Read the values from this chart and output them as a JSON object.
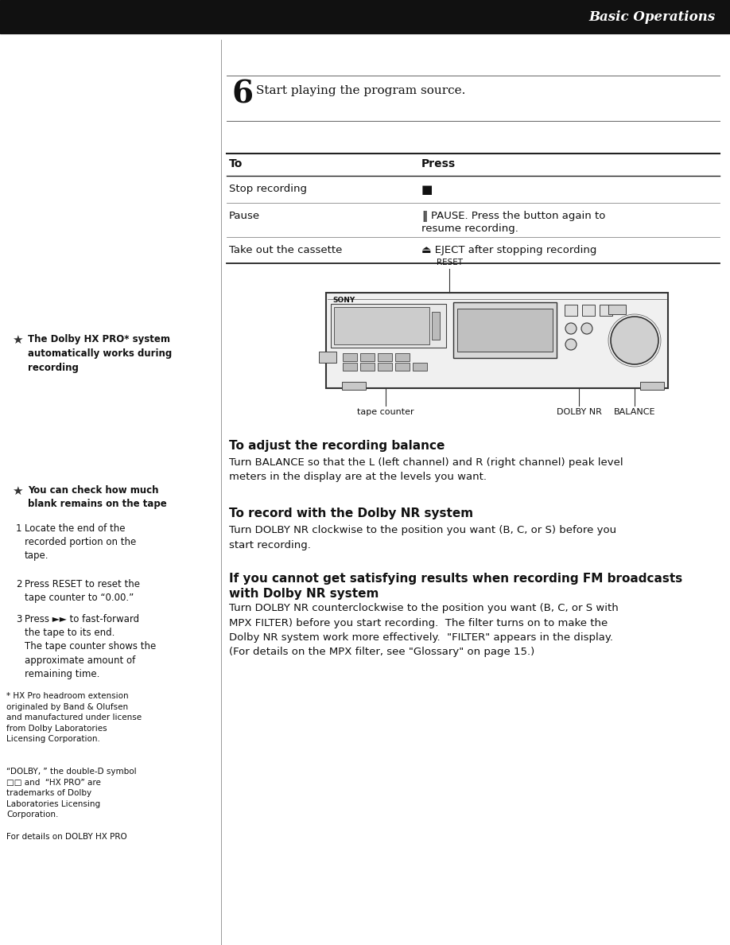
{
  "bg_color": "#ffffff",
  "header_bg": "#111111",
  "header_text": "Basic Operations",
  "header_text_color": "#ffffff",
  "step6_number": "6",
  "step6_text": "Start playing the program source.",
  "table_headers": [
    "To",
    "Press"
  ],
  "table_rows": [
    [
      "Stop recording",
      "■"
    ],
    [
      "Pause",
      "‖ PAUSE. Press the button again to\nresume recording."
    ],
    [
      "Take out the cassette",
      "⏏ EJECT after stopping recording"
    ]
  ],
  "diagram_label_reset": "RESET",
  "diagram_label_tape": "tape counter",
  "diagram_label_dolby": "DOLBY NR",
  "diagram_label_balance": "BALANCE",
  "section1_title": "To adjust the recording balance",
  "section1_body": "Turn BALANCE so that the L (left channel) and R (right channel) peak level\nmeters in the display are at the levels you want.",
  "section2_title": "To record with the Dolby NR system",
  "section2_body": "Turn DOLBY NR clockwise to the position you want (B, C, or S) before you\nstart recording.",
  "section3_title": "If you cannot get satisfying results when recording FM broadcasts\nwith Dolby NR system",
  "section3_body": "Turn DOLBY NR counterclockwise to the position you want (B, C, or S with\nMPX FILTER) before you start recording.  The filter turns on to make the\nDolby NR system work more effectively.  \"FILTER\" appears in the display.\n(For details on the MPX filter, see \"Glossary\" on page 15.)",
  "left_tip1_title": "The Dolby HX PRO* system\nautomatically works during\nrecording",
  "left_tip2_title": "You can check how much\nblank remains on the tape",
  "left_tip2_steps": [
    "Locate the end of the\nrecorded portion on the\ntape.",
    "Press RESET to reset the\ntape counter to “0.00.”",
    "Press ►► to fast-forward\nthe tape to its end.\nThe tape counter shows the\napproximate amount of\nremaining time."
  ],
  "footnote1": "* HX Pro headroom extension\noriginaled by Band & Olufsen\nand manufactured under license\nfrom Dolby Laboratories\nLicensing Corporation.",
  "footnote2": "“DOLBY, ” the double-D symbol\n□□ and  “HX PRO” are\ntrademarks of Dolby\nLaboratories Licensing\nCorporation.",
  "footnote3": "For details on DOLBY HX PRO"
}
